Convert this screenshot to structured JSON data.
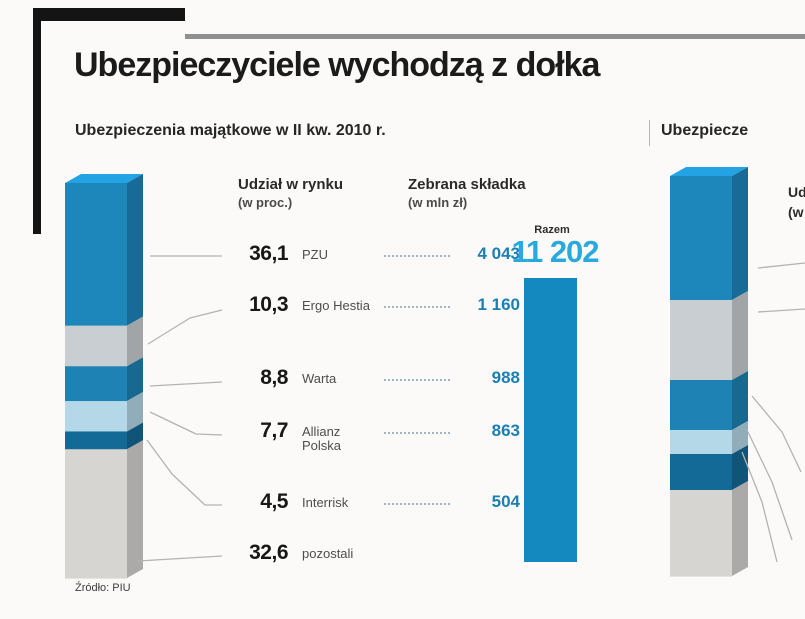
{
  "page": {
    "title": "Ubezpieczyciele wychodzą z dołka",
    "source": "Źródło: PIU",
    "accent_blue": "#1489bf",
    "light_blue": "#2aa9dd"
  },
  "panel1": {
    "subtitle": "Ubezpieczenia majątkowe w II kw. 2010 r.",
    "share_header": "Udział w rynku",
    "share_header_sub": "(w proc.)",
    "premium_header": "Zebrana składka",
    "premium_header_sub": "(w mln zł)",
    "total_label": "Razem",
    "total_value": "11 202",
    "rows": [
      {
        "share": "36,1",
        "name": "PZU",
        "value": "4 043"
      },
      {
        "share": "10,3",
        "name": "Ergo Hestia",
        "value": "1 160"
      },
      {
        "share": "8,8",
        "name": "Warta",
        "value": "988"
      },
      {
        "share": "7,7",
        "name": "Allianz Polska",
        "value": "863"
      },
      {
        "share": "4,5",
        "name": "Interrisk",
        "value": "504"
      },
      {
        "share": "32,6",
        "name": "pozostali",
        "value": ""
      }
    ],
    "bar_segments": [
      {
        "label": "PZU",
        "pct": 36.1,
        "color": "#1d86bb"
      },
      {
        "label": "Ergo Hestia",
        "pct": 10.3,
        "color": "#c9ced2"
      },
      {
        "label": "Warta",
        "pct": 8.8,
        "color": "#1e83b4"
      },
      {
        "label": "Allianz Polska",
        "pct": 7.7,
        "color": "#b5d8e8"
      },
      {
        "label": "Interrisk",
        "pct": 4.5,
        "color": "#146a96"
      },
      {
        "label": "pozostali",
        "pct": 32.6,
        "color": "#d6d5d2"
      }
    ]
  },
  "panel2": {
    "subtitle_fragment": "Ubezpiecze",
    "share_header_fragment_line1": "Ud",
    "share_header_fragment_line2": "(w",
    "bar_segments": [
      {
        "pct": 31.0,
        "color": "#1d86bb"
      },
      {
        "pct": 20.0,
        "color": "#c9ced2"
      },
      {
        "pct": 12.5,
        "color": "#1e83b4"
      },
      {
        "pct": 6.0,
        "color": "#b5d8e8"
      },
      {
        "pct": 9.0,
        "color": "#146a96"
      },
      {
        "pct": 21.5,
        "color": "#d6d5d2"
      }
    ]
  },
  "chart_data": {
    "type": "bar",
    "title": "Ubezpieczyciele wychodzą z dołka",
    "subtitle": "Ubezpieczenia majątkowe w II kw. 2010 r.",
    "categories": [
      "PZU",
      "Ergo Hestia",
      "Warta",
      "Allianz Polska",
      "Interrisk",
      "pozostali"
    ],
    "series": [
      {
        "name": "Udział w rynku (w proc.)",
        "values": [
          36.1,
          10.3,
          8.8,
          7.7,
          4.5,
          32.6
        ]
      },
      {
        "name": "Zebrana składka (w mln zł)",
        "values": [
          4043,
          1160,
          988,
          863,
          504,
          null
        ]
      }
    ],
    "total": {
      "label": "Razem",
      "value": 11202
    },
    "layout": "stacked 3D column + leader lines to value list + single total column",
    "source": "Źródło: PIU"
  }
}
